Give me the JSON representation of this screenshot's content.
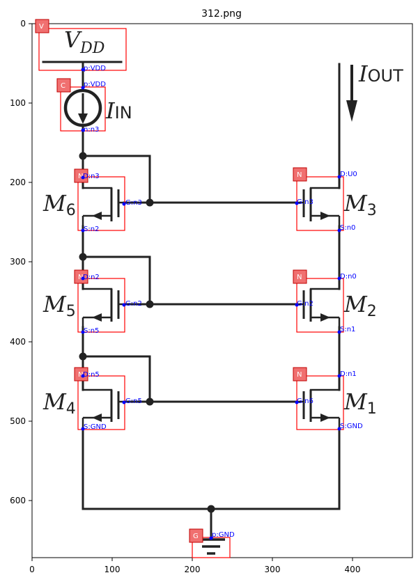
{
  "title": "312.png",
  "axes": {
    "x_ticks": [
      "0",
      "100",
      "200",
      "300",
      "400"
    ],
    "y_ticks": [
      "0",
      "100",
      "200",
      "300",
      "400",
      "500",
      "600"
    ]
  },
  "symbols": {
    "vdd": "V",
    "vdd_sub": "DD",
    "iin": "I",
    "iin_sub": "IN",
    "iout": "I",
    "iout_sub": "OUT",
    "m6": "M",
    "m6_sub": "6",
    "m5": "M",
    "m5_sub": "5",
    "m4": "M",
    "m4_sub": "4",
    "m3": "M",
    "m3_sub": "3",
    "m2": "M",
    "m2_sub": "2",
    "m1": "M",
    "m1_sub": "1"
  },
  "tags": {
    "vdd": "V",
    "current_source": "C",
    "ground": "G",
    "m6": "N",
    "m5": "N",
    "m4": "N",
    "m3": "N",
    "m2": "N",
    "m1": "N"
  },
  "pins": {
    "vdd_p": "p:VDD",
    "src_p": "p:VDD",
    "src_n": "n:n3",
    "gnd_p": "p:GND",
    "m6": {
      "d": "D:n3",
      "g": "G:n3",
      "s": "S:n2"
    },
    "m5": {
      "d": "D:n2",
      "g": "G:n2",
      "s": "S:n5"
    },
    "m4": {
      "d": "D:n5",
      "g": "G:n5",
      "s": "S:GND"
    },
    "m3": {
      "d": "D:U0",
      "g": "G:n3",
      "s": "S:n0"
    },
    "m2": {
      "d": "D:n0",
      "g": "G:n2",
      "s": "S:n1"
    },
    "m1": {
      "d": "D:n1",
      "g": "G:n6",
      "s": "S:GND"
    }
  }
}
